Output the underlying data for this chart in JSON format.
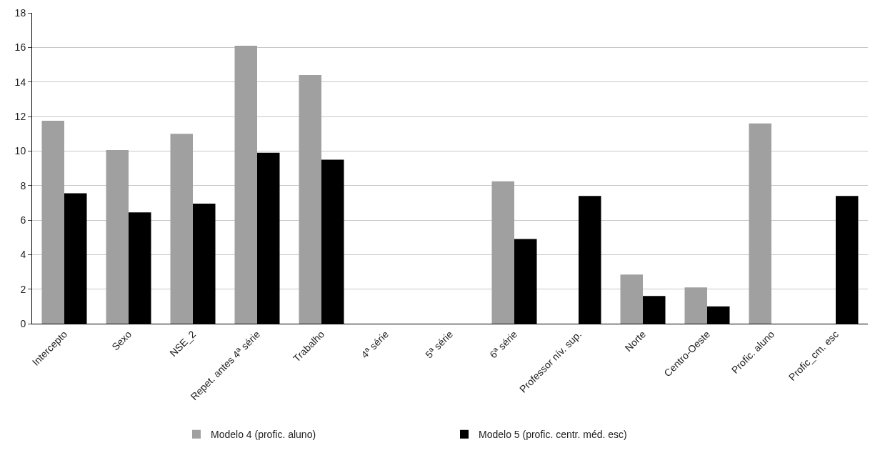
{
  "chart_data": {
    "type": "bar",
    "categories": [
      "Intercepto",
      "Sexo",
      "NSE_2",
      "Repet. antes 4ª série",
      "Trabalho",
      "4ª série",
      "5ª série",
      "6ª série",
      "Professor nív. sup.",
      "Norte",
      "Centro-Oeste",
      "Profic. aluno",
      "Profic_cm. esc"
    ],
    "series": [
      {
        "name": "Modelo 4 (profic. aluno)",
        "color": "#a0a0a0",
        "values": [
          11.75,
          10.05,
          11.0,
          16.1,
          14.4,
          null,
          null,
          8.25,
          null,
          2.85,
          2.1,
          11.6,
          null
        ]
      },
      {
        "name": "Modelo 5 (profic. centr. méd. esc)",
        "color": "#000000",
        "values": [
          7.55,
          6.45,
          6.95,
          9.9,
          9.5,
          null,
          null,
          4.9,
          7.4,
          1.6,
          1.0,
          null,
          7.4
        ]
      }
    ],
    "ylim": [
      0,
      18
    ],
    "yticks": [
      0,
      2,
      4,
      6,
      8,
      10,
      12,
      14,
      16,
      18
    ],
    "grid": "y",
    "legend": "bottom"
  }
}
